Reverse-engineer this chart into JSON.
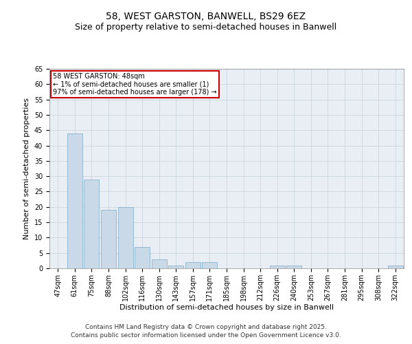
{
  "title_line1": "58, WEST GARSTON, BANWELL, BS29 6EZ",
  "title_line2": "Size of property relative to semi-detached houses in Banwell",
  "xlabel": "Distribution of semi-detached houses by size in Banwell",
  "ylabel": "Number of semi-detached properties",
  "categories": [
    "47sqm",
    "61sqm",
    "75sqm",
    "88sqm",
    "102sqm",
    "116sqm",
    "130sqm",
    "143sqm",
    "157sqm",
    "171sqm",
    "185sqm",
    "198sqm",
    "212sqm",
    "226sqm",
    "240sqm",
    "253sqm",
    "267sqm",
    "281sqm",
    "295sqm",
    "308sqm",
    "322sqm"
  ],
  "values": [
    0,
    44,
    29,
    19,
    20,
    7,
    3,
    1,
    2,
    2,
    0,
    0,
    0,
    1,
    1,
    0,
    0,
    0,
    0,
    0,
    1
  ],
  "bar_color": "#c9d9e8",
  "bar_edge_color": "#7aaac8",
  "annotation_text_line1": "58 WEST GARSTON: 48sqm",
  "annotation_text_line2": "← 1% of semi-detached houses are smaller (1)",
  "annotation_text_line3": "97% of semi-detached houses are larger (178) →",
  "annotation_box_color": "#ffffff",
  "annotation_box_edge": "#cc0000",
  "ylim": [
    0,
    65
  ],
  "yticks": [
    0,
    5,
    10,
    15,
    20,
    25,
    30,
    35,
    40,
    45,
    50,
    55,
    60,
    65
  ],
  "grid_color": "#c8d0d8",
  "background_color": "#ffffff",
  "plot_bg_color": "#e8eef4",
  "footer_line1": "Contains HM Land Registry data © Crown copyright and database right 2025.",
  "footer_line2": "Contains public sector information licensed under the Open Government Licence v3.0.",
  "title_fontsize": 10,
  "subtitle_fontsize": 9,
  "axis_label_fontsize": 8,
  "tick_fontsize": 7,
  "annotation_fontsize": 7,
  "footer_fontsize": 6.5
}
